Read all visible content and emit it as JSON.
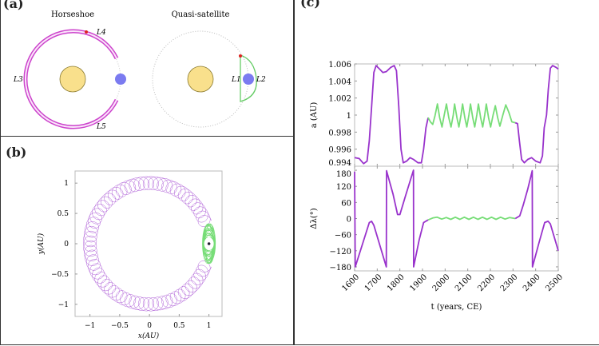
{
  "panels": {
    "a": {
      "label": "(a)",
      "horseshoe_title": "Horseshoe",
      "quasi_title": "Quasi-satellite",
      "lagrange": {
        "L1": "L1",
        "L2": "L2",
        "L3": "L3",
        "L4": "L4",
        "L5": "L5"
      },
      "colors": {
        "sun": "#f9e08c",
        "earth": "#7b7bf0",
        "horseshoe": "#cc44cc",
        "quasi": "#66cc66",
        "asteroid": "#dd2222"
      }
    },
    "b": {
      "label": "(b)"
    },
    "c": {
      "label": "(c)"
    }
  },
  "chart_data": [
    {
      "panel": "b",
      "type": "line",
      "xlabel": "x(AU)",
      "ylabel": "y(AU)",
      "xlim": [
        -1.25,
        1.22
      ],
      "ylim": [
        -1.2,
        1.2
      ],
      "xticks": [
        "−1",
        "−0.5",
        "0",
        "0.5",
        "1"
      ],
      "xtick_values": [
        -1,
        -0.5,
        0,
        0.5,
        1
      ],
      "yticks": [
        "1",
        "0.5",
        "0",
        "−0.5",
        "−1"
      ],
      "ytick_values": [
        1,
        0.5,
        0,
        -0.5,
        -1
      ],
      "series": [
        {
          "color": "#9933cc"
        },
        {
          "color": "#77dd77"
        }
      ],
      "earth_position": [
        1,
        0
      ]
    },
    {
      "panel": "c-top",
      "type": "line",
      "ylabel": "a (AU)",
      "xlim": [
        1600,
        2500
      ],
      "ylim": [
        0.994,
        1.006
      ],
      "yticks": [
        "1.006",
        "1.004",
        "1.002",
        "1",
        "0.998",
        "0.996",
        "0.994"
      ],
      "ytick_values": [
        1.006,
        1.004,
        1.002,
        1.0,
        0.998,
        0.996,
        0.994
      ],
      "series": [
        {
          "color": "#9933cc",
          "points": [
            [
              1600,
              0.995
            ],
            [
              1620,
              0.9949
            ],
            [
              1640,
              0.9943
            ],
            [
              1655,
              0.9946
            ],
            [
              1665,
              0.997
            ],
            [
              1675,
              1.001
            ],
            [
              1685,
              1.005
            ],
            [
              1695,
              1.0058
            ],
            [
              1710,
              1.0054
            ],
            [
              1725,
              1.005
            ],
            [
              1740,
              1.0051
            ],
            [
              1760,
              1.0056
            ],
            [
              1775,
              1.0058
            ],
            [
              1785,
              1.0052
            ],
            [
              1795,
              1.001
            ],
            [
              1805,
              0.996
            ],
            [
              1815,
              0.9944
            ],
            [
              1830,
              0.9946
            ],
            [
              1845,
              0.995
            ],
            [
              1860,
              0.9948
            ],
            [
              1880,
              0.9944
            ],
            [
              1895,
              0.9944
            ],
            [
              1905,
              0.996
            ],
            [
              1915,
              0.9985
            ],
            [
              1925,
              0.9997
            ]
          ]
        },
        {
          "color": "#77dd77",
          "points": [
            [
              1925,
              0.9997
            ],
            [
              1935,
              0.9992
            ],
            [
              1945,
              0.9989
            ],
            [
              1955,
              0.9999
            ],
            [
              1966,
              1.0013
            ],
            [
              1976,
              0.9997
            ],
            [
              1986,
              0.9986
            ],
            [
              1996,
              1.0
            ],
            [
              2006,
              1.0013
            ],
            [
              2016,
              0.9997
            ],
            [
              2026,
              0.9986
            ],
            [
              2036,
              1.0
            ],
            [
              2042,
              1.0013
            ],
            [
              2052,
              0.9997
            ],
            [
              2061,
              0.9986
            ],
            [
              2070,
              1.0
            ],
            [
              2077,
              1.0013
            ],
            [
              2087,
              0.9997
            ],
            [
              2096,
              0.9986
            ],
            [
              2105,
              1.0
            ],
            [
              2112,
              1.0013
            ],
            [
              2122,
              0.9997
            ],
            [
              2131,
              0.9986
            ],
            [
              2140,
              1.0
            ],
            [
              2147,
              1.0013
            ],
            [
              2157,
              0.9997
            ],
            [
              2166,
              0.9986
            ],
            [
              2175,
              1.0
            ],
            [
              2182,
              1.0013
            ],
            [
              2192,
              0.9997
            ],
            [
              2201,
              0.9986
            ],
            [
              2212,
              1.0
            ],
            [
              2222,
              1.0011
            ],
            [
              2232,
              0.9997
            ],
            [
              2242,
              0.9987
            ],
            [
              2255,
              1.0
            ],
            [
              2268,
              1.0012
            ],
            [
              2282,
              1.0003
            ],
            [
              2295,
              0.9992
            ],
            [
              2310,
              0.9991
            ]
          ]
        },
        {
          "color": "#9933cc",
          "points": [
            [
              2310,
              0.9991
            ],
            [
              2320,
              0.999
            ],
            [
              2328,
              0.997
            ],
            [
              2338,
              0.9948
            ],
            [
              2350,
              0.9944
            ],
            [
              2365,
              0.9948
            ],
            [
              2382,
              0.995
            ],
            [
              2400,
              0.9946
            ],
            [
              2420,
              0.9944
            ],
            [
              2430,
              0.9952
            ],
            [
              2438,
              0.9985
            ],
            [
              2448,
              1.0
            ],
            [
              2456,
              1.003
            ],
            [
              2465,
              1.0055
            ],
            [
              2475,
              1.0058
            ],
            [
              2490,
              1.0056
            ],
            [
              2500,
              1.0054
            ]
          ]
        }
      ]
    },
    {
      "panel": "c-bottom",
      "type": "line",
      "xlabel": "t (years, CE)",
      "ylabel": "Δλ(°)",
      "xlim": [
        1600,
        2500
      ],
      "ylim": [
        -195,
        195
      ],
      "yticks": [
        "180",
        "120",
        "60",
        "0",
        "−60",
        "−120",
        "−180"
      ],
      "ytick_values": [
        180,
        120,
        60,
        0,
        -60,
        -120,
        -180
      ],
      "xticks": [
        "1600",
        "1700",
        "1800",
        "1900",
        "2000",
        "2100",
        "2200",
        "2300",
        "2400",
        "2500"
      ],
      "xtick_values": [
        1600,
        1700,
        1800,
        1900,
        2000,
        2100,
        2200,
        2300,
        2400,
        2500
      ],
      "series": [
        {
          "color": "#9933cc",
          "points": [
            [
              1600,
              175
            ],
            [
              1603,
              -180
            ],
            [
              1635,
              -95
            ],
            [
              1665,
              -15
            ],
            [
              1675,
              -10
            ],
            [
              1685,
              -25
            ],
            [
              1740,
              -180
            ],
            [
              1741,
              178
            ],
            [
              1770,
              90
            ],
            [
              1790,
              15
            ],
            [
              1800,
              15
            ],
            [
              1825,
              85
            ],
            [
              1860,
              180
            ],
            [
              1861,
              -180
            ],
            [
              1885,
              -80
            ],
            [
              1905,
              -15
            ],
            [
              1925,
              -5
            ]
          ]
        },
        {
          "color": "#77dd77",
          "points": [
            [
              1925,
              -5
            ],
            [
              1945,
              2
            ],
            [
              1965,
              5
            ],
            [
              1985,
              -2
            ],
            [
              2005,
              4
            ],
            [
              2025,
              -3
            ],
            [
              2045,
              5
            ],
            [
              2065,
              -3
            ],
            [
              2085,
              5
            ],
            [
              2105,
              -3
            ],
            [
              2125,
              5
            ],
            [
              2145,
              -3
            ],
            [
              2165,
              5
            ],
            [
              2185,
              -3
            ],
            [
              2205,
              5
            ],
            [
              2225,
              -3
            ],
            [
              2245,
              5
            ],
            [
              2265,
              -2
            ],
            [
              2285,
              4
            ],
            [
              2310,
              0
            ]
          ]
        },
        {
          "color": "#9933cc",
          "points": [
            [
              2310,
              0
            ],
            [
              2330,
              10
            ],
            [
              2345,
              50
            ],
            [
              2365,
              110
            ],
            [
              2385,
              178
            ],
            [
              2386,
              -180
            ],
            [
              2415,
              -90
            ],
            [
              2440,
              -15
            ],
            [
              2455,
              -10
            ],
            [
              2465,
              -20
            ],
            [
              2500,
              -120
            ]
          ]
        }
      ]
    }
  ]
}
